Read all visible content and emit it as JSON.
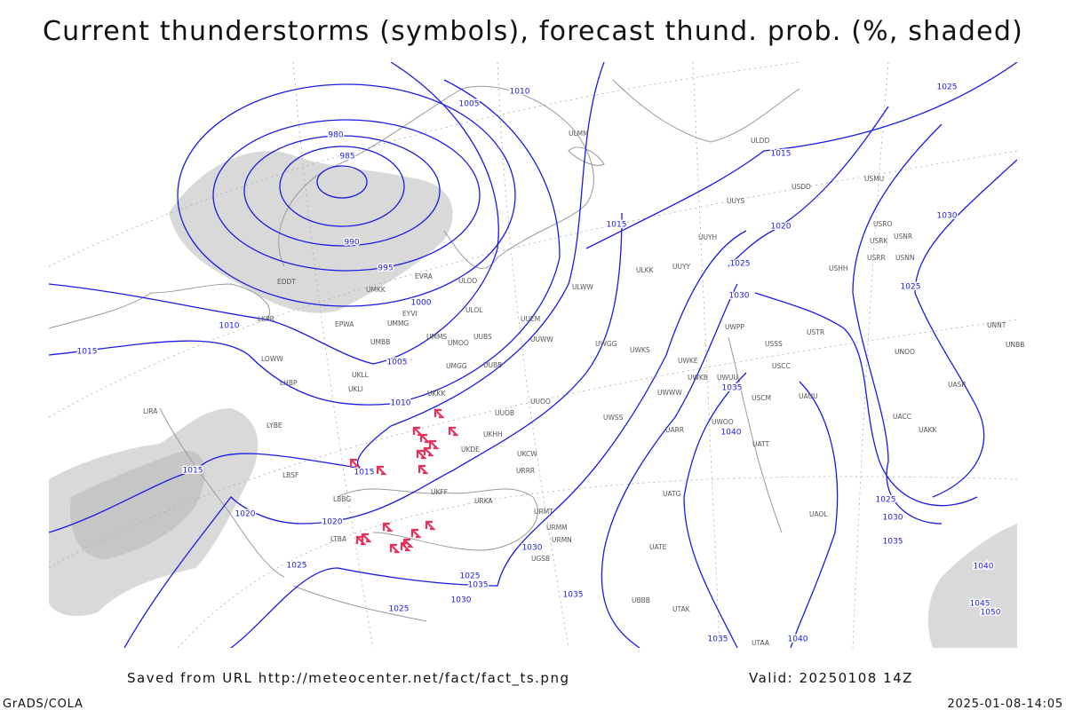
{
  "header": {
    "title": "Current thunderstorms (symbols), forecast thund. prob. (%, shaded)"
  },
  "footer": {
    "source": "Saved from URL http://meteocenter.net/fact/fact_ts.png",
    "valid": "Valid: 20250108 14Z",
    "software": "GrADS/COLA",
    "timestamp": "2025-01-08-14:05"
  },
  "isobar_labels": [
    "1010",
    "1005",
    "980",
    "985",
    "990",
    "995",
    "1000",
    "1005",
    "1010",
    "1010",
    "1015",
    "1015",
    "1015",
    "1020",
    "1020",
    "1025",
    "1025",
    "1030",
    "1025",
    "1035",
    "1030",
    "1035",
    "1015",
    "1015",
    "1020",
    "1025",
    "1030",
    "1035",
    "1040",
    "1040",
    "1035",
    "1025",
    "1030",
    "1025",
    "1025",
    "1030",
    "1035",
    "1040",
    "1045",
    "1050"
  ],
  "stations": [
    "ULMM",
    "ULDD",
    "USDD",
    "USMU",
    "UUYS",
    "UUYH",
    "USRO",
    "USRK",
    "USNR",
    "USRR",
    "USNN",
    "ULKK",
    "UUYY",
    "USHH",
    "ULWW",
    "EVRA",
    "ULOO",
    "UMKK",
    "EDDT",
    "ULOL",
    "EYVI",
    "EPWA",
    "UMMG",
    "UUEM",
    "LKPR",
    "UMMS",
    "UMOO",
    "UUBS",
    "UUWW",
    "UMBB",
    "UWGG",
    "UWKS",
    "USSS",
    "USTR",
    "USCC",
    "USCM",
    "UAUU",
    "UNOO",
    "UASP",
    "UACC",
    "UAKK",
    "UNNT",
    "UNBB",
    "LOWW",
    "LHBP",
    "UKLL",
    "UKLI",
    "UMGG",
    "UUBB",
    "UKKK",
    "UUOO",
    "UUOB",
    "LIRA",
    "LYBE",
    "UKHH",
    "UKDE",
    "UWKE",
    "UWKB",
    "UWWW",
    "UWUU",
    "UWPP",
    "UWSS",
    "UWOO",
    "UARR",
    "UATT",
    "LBSF",
    "LBBG",
    "LTBA",
    "UKFF",
    "URKA",
    "URRR",
    "UKCW",
    "URMT",
    "URMM",
    "URMN",
    "UGSB",
    "UBBB",
    "UTAK",
    "UTAA",
    "UATG",
    "UATE",
    "UAOL"
  ]
}
